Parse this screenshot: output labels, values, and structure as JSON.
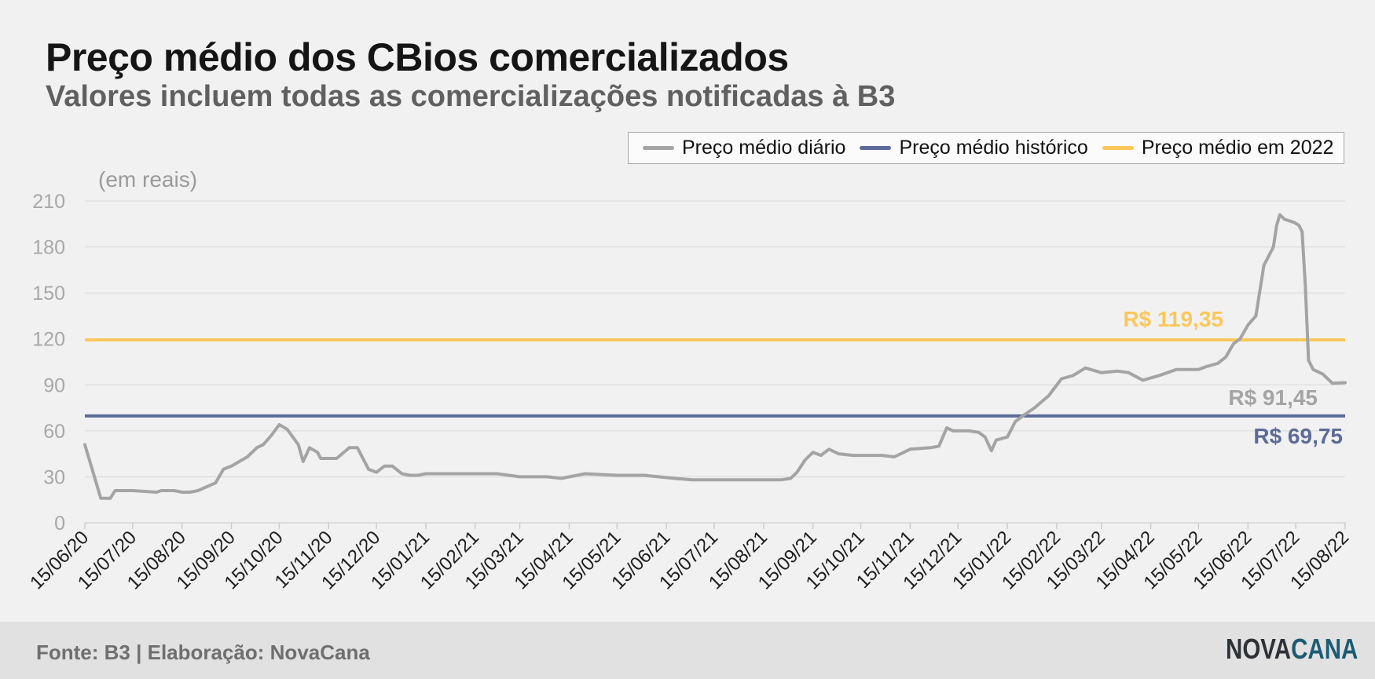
{
  "title": "Preço médio dos CBios comercializados",
  "subtitle": "Valores incluem todas as comercializações notificadas à B3",
  "unit_label": "(em reais)",
  "footer": {
    "source": "Fonte: B3 | Elaboração: NovaCana",
    "logo_part1": "NOVA",
    "logo_part2": "CANA"
  },
  "colors": {
    "daily": "#a4a4a4",
    "historic": "#5c6b98",
    "year2022": "#fcc75a",
    "grid": "#dedede",
    "tick_text": "#a8a8a8"
  },
  "chart_data": {
    "type": "line",
    "x_type": "date",
    "xlim": [
      "2020-06-15",
      "2022-08-15"
    ],
    "ylim": [
      0,
      210
    ],
    "yticks": [
      0,
      30,
      60,
      90,
      120,
      150,
      180,
      210
    ],
    "xtick_labels": [
      "15/06/20",
      "15/07/20",
      "15/08/20",
      "15/09/20",
      "15/10/20",
      "15/11/20",
      "15/12/20",
      "15/01/21",
      "15/02/21",
      "15/03/21",
      "15/04/21",
      "15/05/21",
      "15/06/21",
      "15/07/21",
      "15/08/21",
      "15/09/21",
      "15/10/21",
      "15/11/21",
      "15/12/21",
      "15/01/22",
      "15/02/22",
      "15/03/22",
      "15/04/22",
      "15/05/22",
      "15/06/22",
      "15/07/22",
      "15/08/22"
    ],
    "xtick_dates": [
      "2020-06-15",
      "2020-07-15",
      "2020-08-15",
      "2020-09-15",
      "2020-10-15",
      "2020-11-15",
      "2020-12-15",
      "2021-01-15",
      "2021-02-15",
      "2021-03-15",
      "2021-04-15",
      "2021-05-15",
      "2021-06-15",
      "2021-07-15",
      "2021-08-15",
      "2021-09-15",
      "2021-10-15",
      "2021-11-15",
      "2021-12-15",
      "2022-01-15",
      "2022-02-15",
      "2022-03-15",
      "2022-04-15",
      "2022-05-15",
      "2022-06-15",
      "2022-07-15",
      "2022-08-15"
    ],
    "legend_position": "top-right",
    "grid": true,
    "series": [
      {
        "name": "Preço médio diário",
        "x": [
          "2020-06-15",
          "2020-06-25",
          "2020-07-01",
          "2020-07-04",
          "2020-07-10",
          "2020-07-15",
          "2020-07-30",
          "2020-08-02",
          "2020-08-10",
          "2020-08-15",
          "2020-08-20",
          "2020-08-25",
          "2020-09-05",
          "2020-09-10",
          "2020-09-15",
          "2020-09-20",
          "2020-09-25",
          "2020-10-01",
          "2020-10-05",
          "2020-10-10",
          "2020-10-15",
          "2020-10-20",
          "2020-10-27",
          "2020-10-30",
          "2020-11-03",
          "2020-11-08",
          "2020-11-10",
          "2020-11-13",
          "2020-11-20",
          "2020-11-28",
          "2020-12-03",
          "2020-12-10",
          "2020-12-15",
          "2020-12-20",
          "2020-12-25",
          "2020-12-31",
          "2021-01-05",
          "2021-01-10",
          "2021-01-15",
          "2021-01-20",
          "2021-02-10",
          "2021-03-01",
          "2021-03-15",
          "2021-04-01",
          "2021-04-10",
          "2021-04-20",
          "2021-04-25",
          "2021-05-15",
          "2021-06-01",
          "2021-06-10",
          "2021-06-20",
          "2021-07-01",
          "2021-07-15",
          "2021-08-10",
          "2021-08-20",
          "2021-08-26",
          "2021-09-01",
          "2021-09-05",
          "2021-09-10",
          "2021-09-15",
          "2021-09-20",
          "2021-09-25",
          "2021-10-01",
          "2021-10-10",
          "2021-10-20",
          "2021-10-28",
          "2021-11-05",
          "2021-11-15",
          "2021-11-28",
          "2021-12-03",
          "2021-12-08",
          "2021-12-12",
          "2021-12-22",
          "2021-12-28",
          "2022-01-01",
          "2022-01-05",
          "2022-01-08",
          "2022-01-15",
          "2022-01-20",
          "2022-01-25",
          "2022-02-01",
          "2022-02-10",
          "2022-02-18",
          "2022-02-25",
          "2022-03-05",
          "2022-03-15",
          "2022-03-25",
          "2022-04-01",
          "2022-04-10",
          "2022-04-20",
          "2022-05-01",
          "2022-05-10",
          "2022-05-15",
          "2022-05-20",
          "2022-05-27",
          "2022-06-01",
          "2022-06-06",
          "2022-06-10",
          "2022-06-15",
          "2022-06-20",
          "2022-06-25",
          "2022-07-01",
          "2022-07-03",
          "2022-07-05",
          "2022-07-08",
          "2022-07-14",
          "2022-07-17",
          "2022-07-19",
          "2022-07-21",
          "2022-07-23",
          "2022-07-26",
          "2022-08-01",
          "2022-08-07",
          "2022-08-15"
        ],
        "y": [
          51,
          16,
          16,
          21,
          21,
          21,
          20,
          21,
          21,
          20,
          20,
          21,
          26,
          35,
          37,
          40,
          43,
          49,
          51,
          57,
          64,
          61,
          51,
          40,
          49,
          46,
          42,
          42,
          42,
          49,
          49,
          35,
          33,
          37,
          37,
          32,
          31,
          31,
          32,
          32,
          32,
          32,
          30,
          30,
          29,
          31,
          32,
          31,
          31,
          30,
          29,
          28,
          28,
          28,
          28,
          28,
          29,
          33,
          41,
          46,
          44,
          48,
          45,
          44,
          44,
          44,
          43,
          48,
          49,
          50,
          62,
          60,
          60,
          59,
          56,
          47,
          54,
          56,
          66,
          70,
          75,
          83,
          94,
          96,
          101,
          98,
          99,
          98,
          93,
          96,
          100,
          100,
          100,
          102,
          104,
          108,
          117,
          120,
          129,
          135,
          168,
          180,
          194,
          201,
          198,
          196,
          194,
          190,
          155,
          106,
          100,
          97,
          91,
          91.45
        ],
        "end_label": "R$ 91,45"
      },
      {
        "name": "Preço médio histórico",
        "value": 69.75,
        "label": "R$ 69,75"
      },
      {
        "name": "Preço médio em 2022",
        "value": 119.35,
        "label": "R$ 119,35"
      }
    ]
  }
}
